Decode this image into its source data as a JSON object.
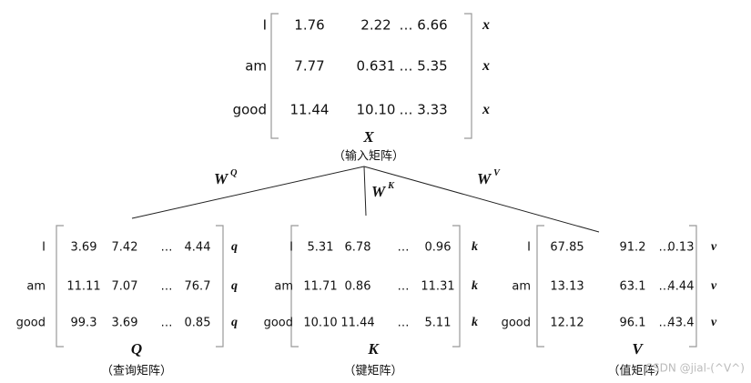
{
  "input": {
    "rows": [
      "I",
      "am",
      "good"
    ],
    "values": [
      [
        "1.76",
        "2.22",
        "…",
        "6.66"
      ],
      [
        "7.77",
        "0.631",
        "…",
        "5.35"
      ],
      [
        "11.44",
        "10.10",
        "…",
        "3.33"
      ]
    ],
    "vectors": [
      {
        "name": "x",
        "sub": "1"
      },
      {
        "name": "x",
        "sub": "2"
      },
      {
        "name": "x",
        "sub": "3"
      }
    ],
    "name": "X",
    "caption": "（输入矩阵）"
  },
  "weights": [
    {
      "name": "W",
      "sup": "Q"
    },
    {
      "name": "W",
      "sup": "K"
    },
    {
      "name": "W",
      "sup": "V"
    }
  ],
  "outputs": [
    {
      "rows": [
        "I",
        "am",
        "good"
      ],
      "values": [
        [
          "3.69",
          "7.42",
          "…",
          "4.44"
        ],
        [
          "11.11",
          "7.07",
          "…",
          "76.7"
        ],
        [
          "99.3",
          "3.69",
          "…",
          "0.85"
        ]
      ],
      "vectors": [
        {
          "name": "q",
          "sub": "1"
        },
        {
          "name": "q",
          "sub": "2"
        },
        {
          "name": "q",
          "sub": "3"
        }
      ],
      "name": "Q",
      "caption": "（查询矩阵）"
    },
    {
      "rows": [
        "I",
        "am",
        "good"
      ],
      "values": [
        [
          "5.31",
          "6.78",
          "…",
          "0.96"
        ],
        [
          "11.71",
          "0.86",
          "…",
          "11.31"
        ],
        [
          "10.10",
          "11.44",
          "…",
          "5.11"
        ]
      ],
      "vectors": [
        {
          "name": "k",
          "sub": "1"
        },
        {
          "name": "k",
          "sub": "2"
        },
        {
          "name": "k",
          "sub": "3"
        }
      ],
      "name": "K",
      "caption": "（键矩阵）"
    },
    {
      "rows": [
        "I",
        "am",
        "good"
      ],
      "values": [
        [
          "67.85",
          "91.2",
          "…",
          "0.13"
        ],
        [
          "13.13",
          "63.1",
          "…",
          "4.44"
        ],
        [
          "12.12",
          "96.1",
          "…",
          "43.4"
        ]
      ],
      "vectors": [
        {
          "name": "v",
          "sub": "1"
        },
        {
          "name": "v",
          "sub": "2"
        },
        {
          "name": "v",
          "sub": "3"
        }
      ],
      "name": "V",
      "caption": "（值矩阵）"
    }
  ],
  "watermark": "CSDN @jial-(^V^)"
}
